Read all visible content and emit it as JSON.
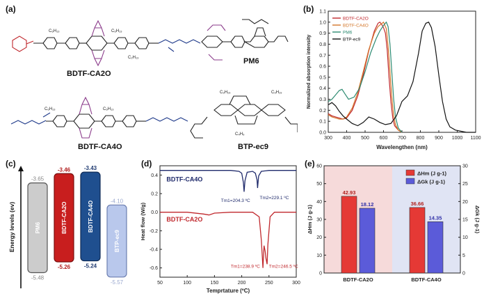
{
  "panels": {
    "a": "(a)",
    "b": "(b)",
    "c": "(c)",
    "d": "(d)",
    "e": "(e)"
  },
  "molecules": {
    "m1": "BDTF-CA2O",
    "m2": "PM6",
    "m3": "BDTF-CA4O",
    "m4": "BTP-ec9"
  },
  "colors": {
    "red": "#c0282d",
    "navy": "#1f2a6b",
    "green": "#2e8b72",
    "orange": "#d4762a",
    "black": "#111111",
    "purple": "#8a3a8a",
    "cyan": "#4a8fa8",
    "bar_red": "#e53935",
    "bar_blue": "#5b5bd9",
    "bg_red": "#f6dada",
    "bg_blue": "#e0e4f4"
  },
  "chart_data": [
    {
      "id": "b",
      "type": "line",
      "xlabel": "Wavelengthen (nm)",
      "ylabel": "Normalized absorption intensity",
      "xlim": [
        300,
        1100
      ],
      "ylim": [
        0.0,
        1.1
      ],
      "xticks": [
        300,
        400,
        500,
        600,
        700,
        800,
        900,
        1000,
        1100
      ],
      "yticks": [
        0.0,
        0.1,
        0.2,
        0.3,
        0.4,
        0.5,
        0.6,
        0.7,
        0.8,
        0.9,
        1.0,
        1.1
      ],
      "legend_position": "top-left",
      "series": [
        {
          "name": "BDTF-CA2O",
          "color": "#c0282d",
          "x": [
            300,
            320,
            340,
            360,
            380,
            400,
            430,
            460,
            490,
            520,
            550,
            570,
            580,
            590,
            600,
            610,
            620,
            630,
            640,
            650,
            660,
            680,
            700
          ],
          "y": [
            0.17,
            0.15,
            0.14,
            0.13,
            0.12,
            0.13,
            0.2,
            0.33,
            0.52,
            0.74,
            0.92,
            0.99,
            1.0,
            0.98,
            0.95,
            0.9,
            0.75,
            0.5,
            0.28,
            0.13,
            0.06,
            0.02,
            0.0
          ]
        },
        {
          "name": "BDTF-CA4O",
          "color": "#d4762a",
          "x": [
            300,
            320,
            340,
            360,
            380,
            400,
            430,
            460,
            490,
            520,
            550,
            570,
            585,
            600,
            615,
            625,
            635,
            645,
            655,
            665,
            680,
            700
          ],
          "y": [
            0.16,
            0.14,
            0.13,
            0.12,
            0.12,
            0.14,
            0.22,
            0.36,
            0.55,
            0.75,
            0.9,
            0.96,
            0.98,
            1.0,
            0.94,
            0.78,
            0.55,
            0.32,
            0.15,
            0.07,
            0.02,
            0.0
          ]
        },
        {
          "name": "PM6",
          "color": "#2e8b72",
          "x": [
            300,
            320,
            340,
            360,
            375,
            390,
            410,
            440,
            470,
            500,
            530,
            560,
            580,
            600,
            615,
            625,
            635,
            645,
            655,
            665,
            680,
            700
          ],
          "y": [
            0.28,
            0.3,
            0.34,
            0.38,
            0.39,
            0.35,
            0.3,
            0.32,
            0.4,
            0.55,
            0.72,
            0.85,
            0.92,
            0.97,
            1.0,
            0.96,
            0.8,
            0.55,
            0.3,
            0.14,
            0.04,
            0.0
          ]
        },
        {
          "name": "BTP-ec9",
          "color": "#111111",
          "x": [
            300,
            320,
            340,
            360,
            380,
            400,
            430,
            460,
            490,
            520,
            550,
            580,
            610,
            640,
            670,
            700,
            730,
            760,
            790,
            810,
            830,
            845,
            860,
            880,
            900,
            920,
            940,
            960,
            990,
            1050,
            1100
          ],
          "y": [
            0.25,
            0.27,
            0.24,
            0.19,
            0.15,
            0.12,
            0.08,
            0.06,
            0.09,
            0.14,
            0.12,
            0.09,
            0.07,
            0.08,
            0.15,
            0.28,
            0.33,
            0.46,
            0.72,
            0.92,
            0.99,
            1.0,
            0.95,
            0.78,
            0.52,
            0.28,
            0.12,
            0.05,
            0.02,
            0.0,
            0.0
          ]
        }
      ]
    },
    {
      "id": "c",
      "type": "bar",
      "ylabel": "Energy levels (ev)",
      "categories": [
        "PM6",
        "BDTF-CA2O",
        "BDTF-CA4O",
        "BTP-ec9"
      ],
      "lumo": [
        -3.65,
        -3.46,
        -3.43,
        -4.1
      ],
      "homo": [
        -5.48,
        -5.26,
        -5.24,
        -5.57
      ],
      "lumo_labels": [
        "-3.65",
        "-3.46",
        "-3.43",
        "-4.10"
      ],
      "homo_labels": [
        "-5.48",
        "-5.26",
        "-5.24",
        "-5.57"
      ],
      "ylim": [
        -5.8,
        -3.3
      ]
    },
    {
      "id": "d",
      "type": "line",
      "xlabel": "Temprtature (ºC)",
      "ylabel": "Heat flow (W/g)",
      "xlim": [
        50,
        300
      ],
      "ylim": [
        -0.7,
        0.5
      ],
      "xticks": [
        50,
        100,
        150,
        200,
        250,
        300
      ],
      "yticks": [
        -0.6,
        -0.4,
        -0.2,
        0.0,
        0.2,
        0.4
      ],
      "series": [
        {
          "name": "BDTF-CA4O",
          "color": "#1f2a6b",
          "x": [
            50,
            100,
            150,
            180,
            195,
            200,
            203,
            204.3,
            206,
            210,
            220,
            225,
            228,
            229.1,
            231,
            236,
            250,
            300
          ],
          "y": [
            0.45,
            0.45,
            0.45,
            0.45,
            0.44,
            0.42,
            0.32,
            0.22,
            0.34,
            0.43,
            0.44,
            0.42,
            0.35,
            0.26,
            0.39,
            0.44,
            0.45,
            0.45
          ]
        },
        {
          "name": "BDTF-CA2O",
          "color": "#c0282d",
          "x": [
            50,
            100,
            130,
            140,
            150,
            180,
            220,
            232,
            236,
            238.9,
            241,
            243,
            244.5,
            246.5,
            248,
            252,
            260,
            300
          ],
          "y": [
            0.0,
            0.0,
            -0.02,
            -0.03,
            -0.01,
            0.0,
            0.0,
            -0.05,
            -0.3,
            -0.6,
            -0.36,
            -0.42,
            -0.5,
            -0.56,
            -0.35,
            -0.05,
            0.0,
            0.0
          ]
        }
      ],
      "annotations": [
        {
          "text": "BDTF-CA4O",
          "x": 62,
          "y": 0.33,
          "color": "#1f2a6b"
        },
        {
          "text": "BDTF-CA2O",
          "x": 62,
          "y": -0.1,
          "color": "#c0282d"
        },
        {
          "text": "Tm1=204.3 ºC",
          "x": 162,
          "y": 0.11,
          "color": "#1f2a6b"
        },
        {
          "text": "Tm2=229.1 ºC",
          "x": 233,
          "y": 0.14,
          "color": "#1f2a6b"
        },
        {
          "text": "Tm1=238.9 ºC",
          "x": 180,
          "y": -0.6,
          "color": "#c0282d"
        },
        {
          "text": "Tm2=246.5 ºC",
          "x": 250,
          "y": -0.6,
          "color": "#c0282d"
        }
      ]
    },
    {
      "id": "e",
      "type": "bar",
      "ylabel": "ΔHm (J g-1)",
      "ylabel_right": "ΔGk (J g-1)",
      "categories": [
        "BDTF-CA2O",
        "BDTF-CA4O"
      ],
      "ylim": [
        0,
        60
      ],
      "ylim_right": [
        0,
        30
      ],
      "yticks": [
        0,
        10,
        20,
        30,
        40,
        50,
        60
      ],
      "yticks_right": [
        0,
        5,
        10,
        15,
        20,
        25,
        30
      ],
      "legend_position": "top-right",
      "series": [
        {
          "name": "ΔHm (J g-1)",
          "axis": "left",
          "color": "#e53935",
          "values": [
            42.93,
            36.66
          ],
          "labels": [
            "42.93",
            "36.66"
          ]
        },
        {
          "name": "ΔGk (J g-1)",
          "axis": "right",
          "color": "#5b5bd9",
          "values": [
            18.12,
            14.35
          ],
          "labels": [
            "18.12",
            "14.35"
          ]
        }
      ]
    }
  ]
}
